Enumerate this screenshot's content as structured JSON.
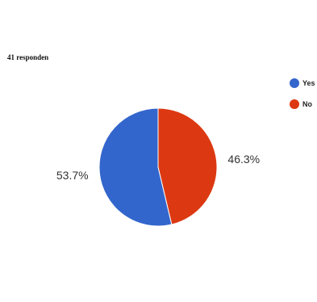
{
  "header": {
    "respondents": "41 responden"
  },
  "chart_data": {
    "type": "pie",
    "categories": [
      "Yes",
      "No"
    ],
    "values": [
      53.7,
      46.3
    ],
    "value_labels": [
      "53.7%",
      "46.3%"
    ],
    "colors": [
      "#3366cc",
      "#dc3912"
    ],
    "title": "",
    "legend_position": "right"
  }
}
